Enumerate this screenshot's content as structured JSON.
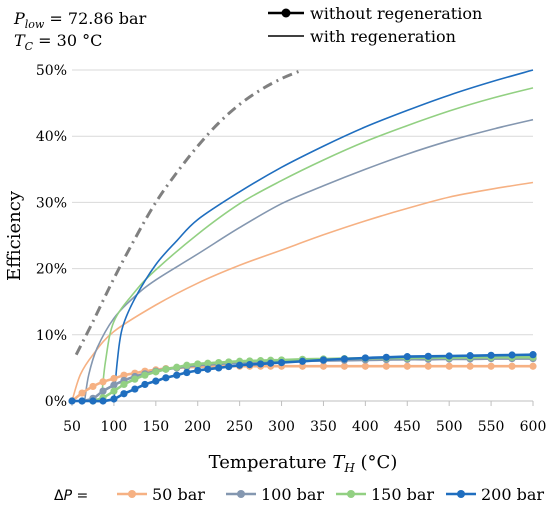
{
  "chart_data": {
    "type": "line",
    "annotation": {
      "p_main": "P",
      "p_sub": "low",
      "p_rest": " = 72.86 bar",
      "t_main": "T",
      "t_sub": "C",
      "t_rest": " = 30 °C"
    },
    "legend_top": {
      "markers_label": "without regeneration",
      "line_label": "with regeneration"
    },
    "legend_bottom": {
      "prefix_main": "Δ",
      "prefix_var": "P",
      "prefix_rest": " ="
    },
    "xlabel_main": "Temperature ",
    "xlabel_var": "T",
    "xlabel_sub": "H",
    "xlabel_rest": " (°C)",
    "ylabel": "Efficiency",
    "xlim": [
      50,
      600
    ],
    "ylim": [
      0,
      50
    ],
    "xticks": [
      50,
      100,
      150,
      200,
      250,
      300,
      350,
      400,
      450,
      500,
      550,
      600
    ],
    "yticks": [
      "0%",
      "10%",
      "20%",
      "30%",
      "40%",
      "50%"
    ],
    "ytick_values": [
      0,
      10,
      20,
      30,
      40,
      50
    ],
    "dashdot_curve": {
      "color": "#808080",
      "x": [
        55,
        75,
        100,
        125,
        150,
        175,
        200,
        225,
        250,
        275,
        300,
        325
      ],
      "y": [
        7,
        12,
        18.5,
        24.5,
        30,
        34.5,
        38.5,
        42,
        44.8,
        47,
        48.7,
        50
      ]
    },
    "series": [
      {
        "name": "50 bar",
        "color": "#f6b183",
        "regen_x": [
          50,
          60,
          75,
          100,
          150,
          200,
          250,
          300,
          350,
          400,
          450,
          500,
          550,
          600
        ],
        "regen_y": [
          0,
          4,
          7,
          10.5,
          14.5,
          17.8,
          20.5,
          22.8,
          25.1,
          27.2,
          29.1,
          30.8,
          32,
          33
        ],
        "noregen_x": [
          50,
          62,
          75,
          87,
          100,
          112,
          125,
          137,
          150,
          162,
          175,
          187,
          200,
          212,
          225,
          237,
          250,
          262,
          275,
          287,
          300,
          325,
          350,
          375,
          400,
          425,
          450,
          475,
          500,
          525,
          550,
          575,
          600
        ],
        "noregen_y": [
          0,
          1.2,
          2.2,
          2.9,
          3.4,
          3.9,
          4.2,
          4.5,
          4.7,
          4.9,
          5.0,
          5.1,
          5.15,
          5.2,
          5.25,
          5.25,
          5.25,
          5.25,
          5.25,
          5.25,
          5.25,
          5.25,
          5.25,
          5.25,
          5.25,
          5.25,
          5.25,
          5.25,
          5.25,
          5.25,
          5.25,
          5.25,
          5.25
        ]
      },
      {
        "name": "100 bar",
        "color": "#8497b0",
        "regen_x": [
          65,
          70,
          80,
          100,
          125,
          150,
          200,
          250,
          300,
          350,
          400,
          450,
          500,
          550,
          600
        ],
        "regen_y": [
          0,
          4,
          8,
          12.5,
          15.8,
          18.3,
          22.2,
          26.2,
          29.8,
          32.5,
          35,
          37.3,
          39.3,
          41,
          42.5
        ],
        "noregen_x": [
          62,
          75,
          87,
          100,
          112,
          125,
          137,
          150,
          162,
          175,
          187,
          200,
          212,
          225,
          237,
          250,
          262,
          275,
          287,
          300,
          325,
          350,
          375,
          400,
          425,
          450,
          475,
          500,
          525,
          550,
          575,
          600
        ],
        "noregen_y": [
          0,
          0.4,
          1.5,
          2.4,
          3.1,
          3.7,
          4.1,
          4.5,
          4.8,
          5.0,
          5.2,
          5.4,
          5.5,
          5.6,
          5.7,
          5.8,
          5.85,
          5.9,
          6.0,
          6.0,
          6.05,
          6.1,
          6.15,
          6.2,
          6.25,
          6.3,
          6.3,
          6.35,
          6.35,
          6.4,
          6.4,
          6.4
        ]
      },
      {
        "name": "150 bar",
        "color": "#92d082",
        "regen_x": [
          85,
          90,
          100,
          125,
          150,
          200,
          250,
          300,
          350,
          400,
          450,
          500,
          550,
          600
        ],
        "regen_y": [
          0,
          6,
          12,
          16.5,
          19.8,
          25.2,
          29.8,
          33.3,
          36.4,
          39.2,
          41.6,
          43.8,
          45.7,
          47.3
        ],
        "noregen_x": [
          75,
          87,
          100,
          112,
          125,
          137,
          150,
          162,
          175,
          187,
          200,
          212,
          225,
          237,
          250,
          262,
          275,
          287,
          300,
          325,
          350,
          375,
          400,
          425,
          450,
          475,
          500,
          525,
          550,
          575,
          600
        ],
        "noregen_y": [
          0,
          0.5,
          1.5,
          2.5,
          3.3,
          3.9,
          4.4,
          4.8,
          5.1,
          5.4,
          5.6,
          5.7,
          5.8,
          5.9,
          6.0,
          6.05,
          6.1,
          6.15,
          6.2,
          6.3,
          6.35,
          6.4,
          6.45,
          6.5,
          6.5,
          6.55,
          6.55,
          6.6,
          6.6,
          6.6,
          6.6
        ]
      },
      {
        "name": "200 bar",
        "color": "#1f6ebf",
        "regen_x": [
          100,
          104,
          110,
          125,
          150,
          175,
          200,
          250,
          300,
          350,
          400,
          450,
          500,
          550,
          600
        ],
        "regen_y": [
          0,
          6,
          11,
          15.5,
          20.6,
          24.2,
          27.4,
          31.6,
          35.3,
          38.5,
          41.4,
          43.9,
          46.2,
          48.2,
          50
        ],
        "noregen_x": [
          50,
          62,
          75,
          87,
          100,
          112,
          125,
          137,
          150,
          162,
          175,
          187,
          200,
          212,
          225,
          237,
          250,
          262,
          275,
          287,
          300,
          325,
          350,
          375,
          400,
          425,
          450,
          475,
          500,
          525,
          550,
          575,
          600
        ],
        "noregen_y": [
          0,
          0,
          0,
          0,
          0.3,
          1.1,
          1.8,
          2.5,
          3.0,
          3.5,
          3.9,
          4.3,
          4.6,
          4.8,
          5.0,
          5.2,
          5.4,
          5.5,
          5.6,
          5.7,
          5.8,
          6.0,
          6.2,
          6.35,
          6.5,
          6.6,
          6.7,
          6.75,
          6.8,
          6.85,
          6.9,
          6.95,
          7.0
        ]
      }
    ]
  }
}
